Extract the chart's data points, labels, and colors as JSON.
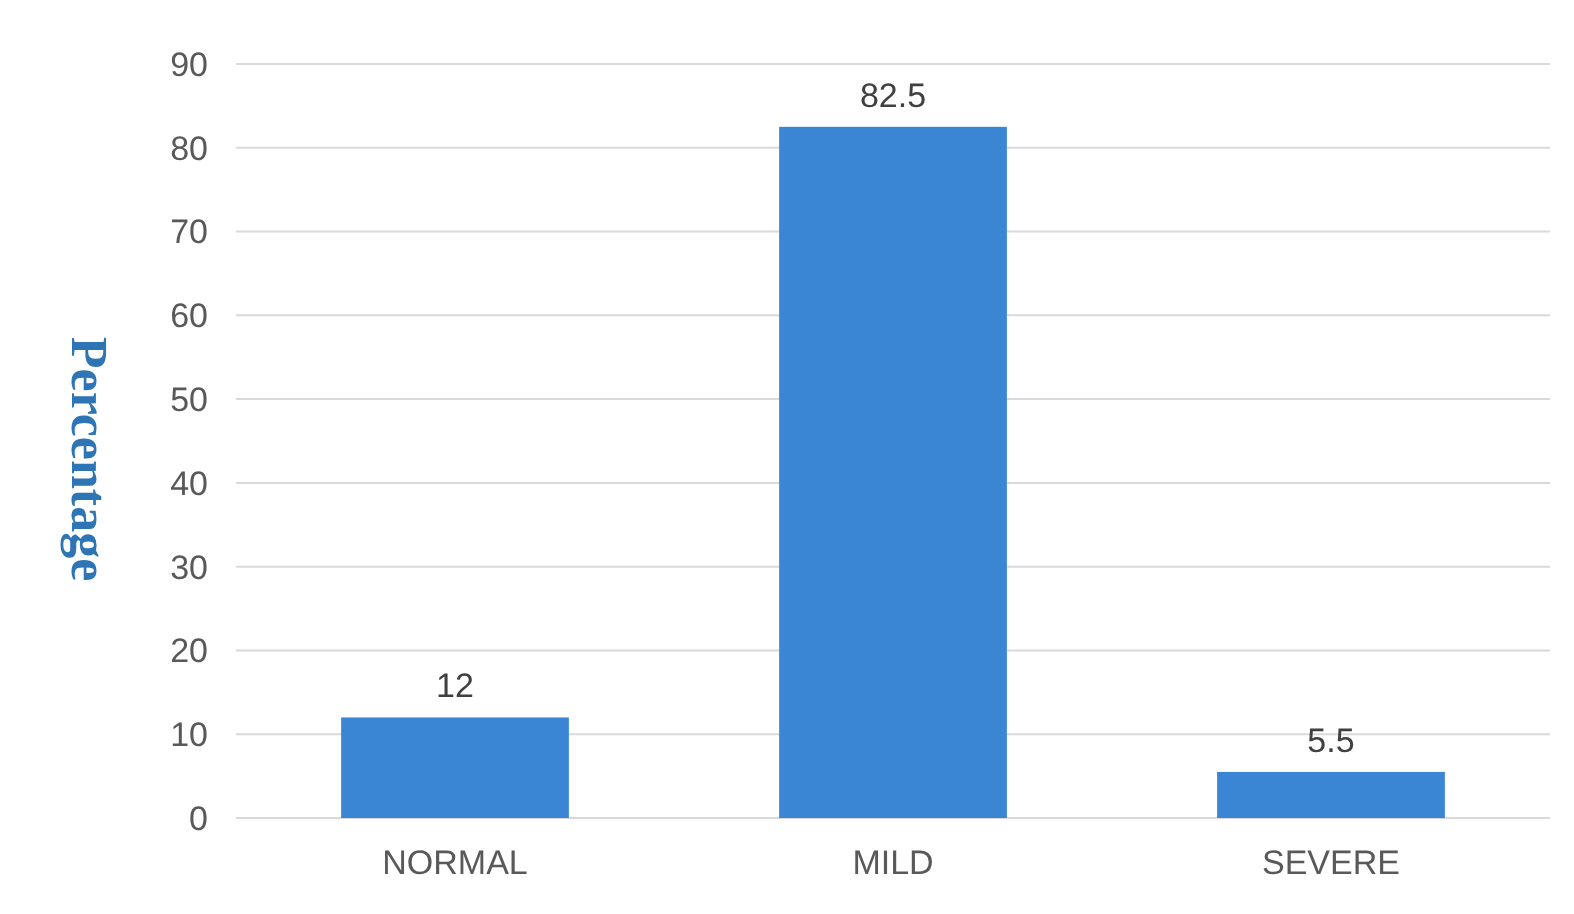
{
  "chart_data": {
    "type": "bar",
    "ylabel": "Percentage",
    "categories": [
      "NORMAL",
      "MILD",
      "SEVERE"
    ],
    "values": [
      12,
      82.5,
      5.5
    ],
    "color": "#3a86d4",
    "ylim": [
      0,
      90
    ],
    "yticks": [
      0,
      10,
      20,
      30,
      40,
      50,
      60,
      70,
      80,
      90
    ],
    "grid": "y",
    "data_labels": true
  }
}
